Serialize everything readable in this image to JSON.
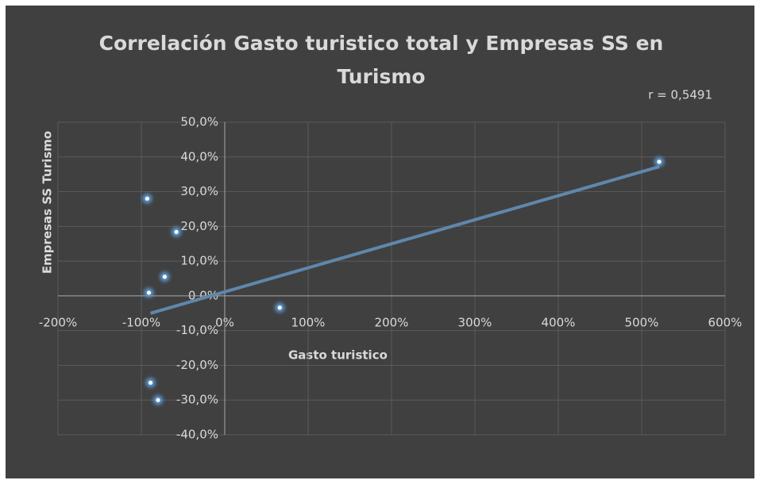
{
  "chart_data": {
    "type": "scatter",
    "title": "Correlación Gasto turistico total y Empresas SS en Turismo",
    "annotation": "r = 0,5491",
    "x_label": "Gasto turistico",
    "y_label": "Empresas SS Turismo",
    "x": [
      521,
      -93,
      -58,
      -72,
      -91,
      66,
      -89,
      -80
    ],
    "values": [
      38.6,
      28,
      18.4,
      5.5,
      0.9,
      -3.4,
      -25,
      -30
    ],
    "color": "#5b9bd5",
    "trendline": {
      "x": [
        -89,
        521
      ],
      "y": [
        -5,
        37.2
      ],
      "color": "#5f87ad"
    },
    "xlim": [
      -200,
      600
    ],
    "ylim": [
      -40,
      50
    ],
    "xticks": [
      {
        "value": -200,
        "label": "-200%"
      },
      {
        "value": -100,
        "label": "-100%"
      },
      {
        "value": 0,
        "label": "0%"
      },
      {
        "value": 100,
        "label": "100%"
      },
      {
        "value": 200,
        "label": "200%"
      },
      {
        "value": 300,
        "label": "300%"
      },
      {
        "value": 400,
        "label": "400%"
      },
      {
        "value": 500,
        "label": "500%"
      },
      {
        "value": 600,
        "label": "600%"
      }
    ],
    "yticks": [
      {
        "value": -40,
        "label": "-40,0%"
      },
      {
        "value": -30,
        "label": "-30,0%"
      },
      {
        "value": -20,
        "label": "-20,0%"
      },
      {
        "value": -10,
        "label": "-10,0%"
      },
      {
        "value": 0,
        "label": "0,0%"
      },
      {
        "value": 10,
        "label": "10,0%"
      },
      {
        "value": 20,
        "label": "20,0%"
      },
      {
        "value": 30,
        "label": "30,0%"
      },
      {
        "value": 40,
        "label": "40,0%"
      },
      {
        "value": 50,
        "label": "50,0%"
      }
    ],
    "grid": true
  }
}
